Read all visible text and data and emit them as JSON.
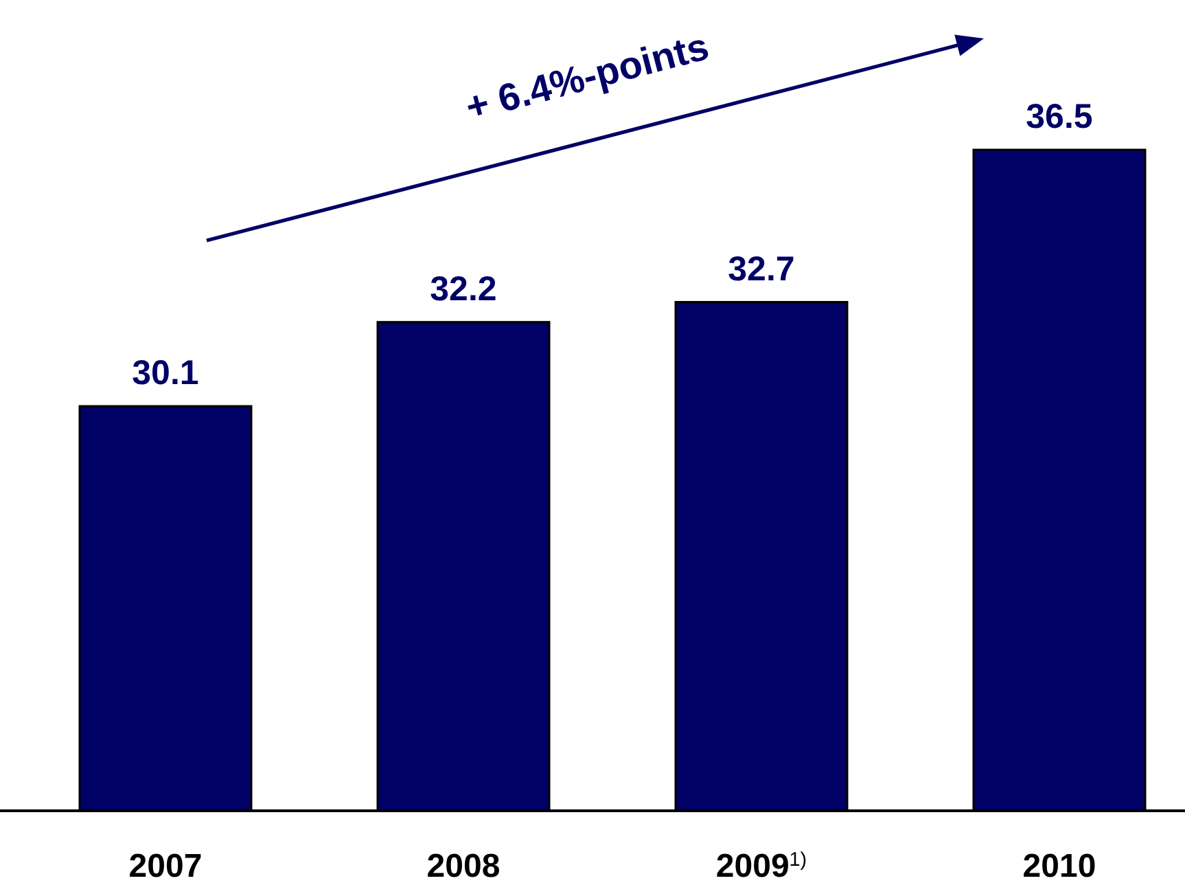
{
  "chart_data": {
    "type": "bar",
    "categories": [
      "2007",
      "2008",
      "2009$^{1)}$",
      "2010"
    ],
    "values": [
      30.1,
      32.2,
      32.7,
      36.5
    ],
    "color": "#000066",
    "ylim": [
      20,
      36.5
    ],
    "data_labels": true,
    "annotations": [
      "+ 6.4%-points"
    ]
  }
}
